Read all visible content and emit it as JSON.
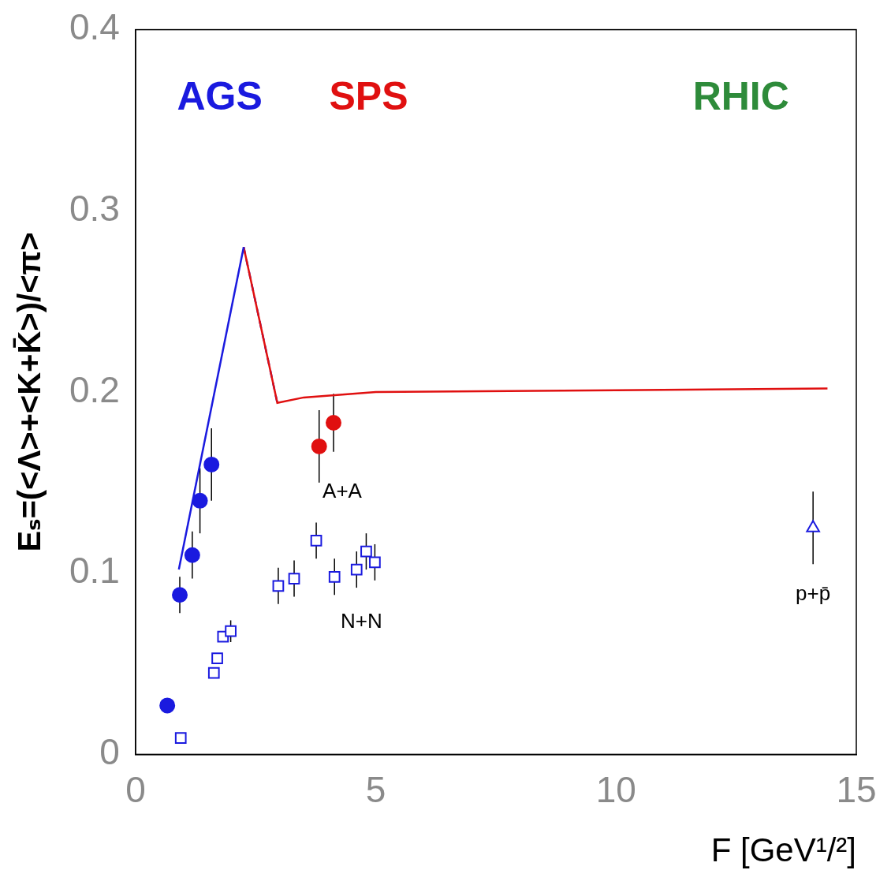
{
  "chart_data": {
    "type": "scatter",
    "x_label": "F [GeV¹/²]",
    "y_label": "Eₛ=(<Λ>+<K+K̄>)/<π>",
    "xlim": [
      0,
      15
    ],
    "xticks": [
      0,
      5,
      10,
      15
    ],
    "ylim": [
      0,
      0.4
    ],
    "yticks": [
      0,
      0.1,
      0.2,
      0.3,
      0.4
    ],
    "grid": false,
    "series": [
      {
        "type": "scatter",
        "color": "#1a1adf",
        "marker": "circle",
        "x": [
          0.66,
          0.92,
          1.18,
          1.34,
          1.58
        ],
        "values": [
          0.027,
          0.088,
          0.11,
          0.14,
          0.16
        ],
        "errors": [
          null,
          0.01,
          0.013,
          0.018,
          0.02
        ]
      },
      {
        "type": "scatter",
        "color": "#e01010",
        "marker": "circle",
        "x": [
          3.82,
          4.12
        ],
        "values": [
          0.17,
          0.183
        ],
        "errors": [
          0.02,
          0.016
        ]
      },
      {
        "type": "scatter",
        "color": "#1a1adf",
        "marker": "open_square",
        "x": [
          0.94,
          1.63,
          1.7,
          1.82,
          1.98,
          2.97,
          3.3,
          3.76,
          4.14,
          4.6,
          4.8,
          4.98
        ],
        "values": [
          0.009,
          0.045,
          0.053,
          0.065,
          0.068,
          0.093,
          0.097,
          0.118,
          0.098,
          0.102,
          0.112,
          0.106
        ],
        "errors": [
          null,
          null,
          null,
          null,
          0.006,
          0.01,
          0.01,
          0.01,
          0.01,
          0.01,
          0.01,
          0.01
        ]
      },
      {
        "type": "scatter",
        "color": "#1a1adf",
        "marker": "open_triangle",
        "x": [
          14.1
        ],
        "values": [
          0.125
        ],
        "errors": [
          0.02
        ]
      },
      {
        "type": "line",
        "color": "#1a1adf",
        "line_style": "solid",
        "x": [
          0.9,
          2.25
        ],
        "values": [
          0.102,
          0.28
        ]
      },
      {
        "type": "line",
        "color": "#e01010",
        "line_style": "solid",
        "x": [
          2.25,
          2.95,
          3.5,
          5,
          10,
          14.4
        ],
        "values": [
          0.28,
          0.194,
          0.197,
          0.2,
          0.201,
          0.202
        ]
      },
      {
        "type": "line",
        "color": "#1a1adf",
        "line_style": "dashed",
        "x": [
          2.25,
          2.95
        ],
        "values": [
          0.28,
          0.194
        ]
      }
    ],
    "annotations": [
      {
        "text": "AGS",
        "color": "#1a1adf"
      },
      {
        "text": "SPS",
        "color": "#e01010"
      },
      {
        "text": "RHIC",
        "color": "#2e8b3a"
      },
      {
        "text": "A+A",
        "color": "#000000"
      },
      {
        "text": "N+N",
        "color": "#000000"
      },
      {
        "text": "p+p̄",
        "color": "#000000"
      }
    ]
  }
}
